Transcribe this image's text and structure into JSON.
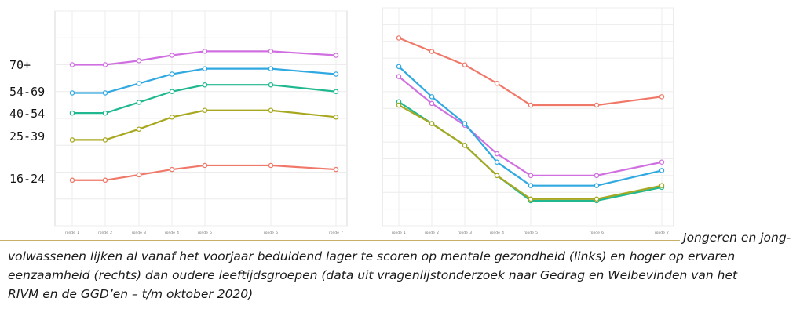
{
  "age_labels": [
    "70+",
    "54-69",
    "40-54",
    "25-39",
    "16-24"
  ],
  "caption": {
    "line1": "Jongeren en jong-",
    "line2": "volwassenen lijken al vanaf het voorjaar beduidend lager te scoren op mentale gezondheid (links) en hoger op ervaren",
    "line3": "eenzaamheid (rechts) dan oudere leeftijdsgroepen (data uit vragenlijstonderzoek naar Gedrag en Welbevinden van het",
    "line4": "RIVM en de GGD’en – t/m oktober 2020)"
  },
  "chart_data": [
    {
      "type": "line",
      "x": [
        "ronde_1",
        "ronde_2",
        "ronde_3",
        "ronde_4",
        "ronde_5",
        "ronde_6",
        "ronde_7"
      ],
      "x_positions": [
        1,
        2,
        3,
        4,
        5,
        7,
        9
      ],
      "series": [
        {
          "color": "#d070e0",
          "values": [
            6.0,
            6.0,
            6.3,
            6.7,
            7.0,
            7.0,
            6.7
          ]
        },
        {
          "color": "#30a8e0",
          "values": [
            3.9,
            3.9,
            4.6,
            5.3,
            5.7,
            5.7,
            5.3
          ]
        },
        {
          "color": "#20b890",
          "values": [
            2.4,
            2.4,
            3.2,
            4.0,
            4.5,
            4.5,
            4.0
          ]
        },
        {
          "color": "#a8a820",
          "values": [
            0.4,
            0.4,
            1.2,
            2.1,
            2.6,
            2.6,
            2.1
          ]
        },
        {
          "color": "#f07868",
          "values": [
            -2.6,
            -2.6,
            -2.2,
            -1.8,
            -1.5,
            -1.5,
            -1.8
          ]
        }
      ],
      "ylim": [
        -6,
        10
      ],
      "grid": true
    },
    {
      "type": "line",
      "x": [
        "ronde_1",
        "ronde_2",
        "ronde_3",
        "ronde_4",
        "ronde_5",
        "ronde_6",
        "ronde_7"
      ],
      "x_positions": [
        1,
        2,
        3,
        4,
        5,
        7,
        9
      ],
      "series": [
        {
          "color": "#f07868",
          "values": [
            18.2,
            17.4,
            16.6,
            15.5,
            14.2,
            14.2,
            14.7
          ]
        },
        {
          "color": "#d070e0",
          "values": [
            15.9,
            14.3,
            13.0,
            11.3,
            10.0,
            10.0,
            10.8
          ]
        },
        {
          "color": "#30a8e0",
          "values": [
            16.5,
            14.7,
            13.1,
            10.8,
            9.4,
            9.4,
            10.3
          ]
        },
        {
          "color": "#20b890",
          "values": [
            14.4,
            13.1,
            11.8,
            10.0,
            8.5,
            8.5,
            9.3
          ]
        },
        {
          "color": "#a8a820",
          "values": [
            14.2,
            13.1,
            11.8,
            10.0,
            8.6,
            8.6,
            9.4
          ]
        }
      ],
      "ylim": [
        7.0,
        20.0
      ],
      "grid": true
    }
  ]
}
